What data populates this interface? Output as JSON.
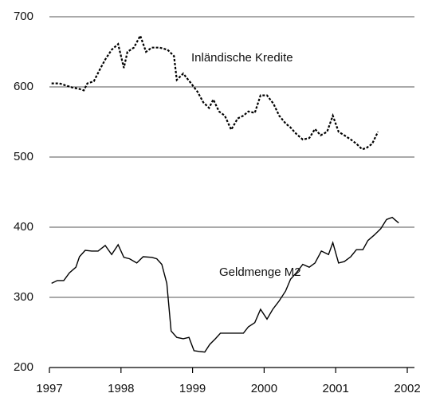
{
  "chart_data": {
    "type": "line",
    "xlim": [
      1997,
      2002
    ],
    "xticks": [
      1997,
      1998,
      1999,
      2000,
      2001,
      2002
    ],
    "ylim": [
      200,
      700
    ],
    "yticks": [
      200,
      300,
      400,
      500,
      600,
      700
    ],
    "grid": true,
    "series": [
      {
        "name": "Inländische Kredite",
        "color": "#000000",
        "dashed": true,
        "x": [
          1997.03,
          1997.14,
          1997.26,
          1997.33,
          1997.42,
          1997.48,
          1997.53,
          1997.62,
          1997.7,
          1997.78,
          1997.87,
          1997.96,
          1998.04,
          1998.09,
          1998.18,
          1998.27,
          1998.35,
          1998.43,
          1998.54,
          1998.65,
          1998.74,
          1998.78,
          1998.87,
          1998.98,
          1999.07,
          1999.15,
          1999.23,
          1999.29,
          1999.37,
          1999.45,
          1999.54,
          1999.63,
          1999.71,
          1999.78,
          1999.87,
          1999.95,
          2000.04,
          2000.13,
          2000.21,
          2000.3,
          2000.37,
          2000.45,
          2000.54,
          2000.63,
          2000.71,
          2000.79,
          2000.88,
          2000.96,
          2001.04,
          2001.12,
          2001.21,
          2001.29,
          2001.37,
          2001.43,
          2001.51,
          2001.59
        ],
        "values": [
          605,
          605,
          601,
          599,
          597,
          595,
          605,
          608,
          624,
          639,
          653,
          661,
          627,
          650,
          656,
          673,
          650,
          656,
          656,
          653,
          644,
          610,
          619,
          605,
          593,
          578,
          570,
          582,
          565,
          559,
          539,
          555,
          559,
          565,
          563,
          588,
          588,
          576,
          559,
          548,
          542,
          533,
          525,
          527,
          540,
          531,
          536,
          559,
          536,
          531,
          525,
          519,
          511,
          513,
          519,
          536
        ]
      },
      {
        "name": "Geldmenge M2",
        "color": "#000000",
        "dashed": false,
        "x": [
          1997.03,
          1997.11,
          1997.2,
          1997.28,
          1997.37,
          1997.42,
          1997.5,
          1997.59,
          1997.68,
          1997.78,
          1997.87,
          1997.96,
          1998.04,
          1998.12,
          1998.22,
          1998.31,
          1998.43,
          1998.5,
          1998.57,
          1998.64,
          1998.7,
          1998.78,
          1998.87,
          1998.95,
          1999.02,
          1999.09,
          1999.17,
          1999.24,
          1999.32,
          1999.39,
          1999.48,
          1999.59,
          1999.71,
          1999.78,
          1999.87,
          1999.95,
          2000.04,
          2000.12,
          2000.21,
          2000.3,
          2000.37,
          2000.45,
          2000.54,
          2000.63,
          2000.71,
          2000.8,
          2000.9,
          2000.96,
          2001.04,
          2001.12,
          2001.21,
          2001.29,
          2001.38,
          2001.45,
          2001.54,
          2001.63,
          2001.71,
          2001.79,
          2001.88
        ],
        "values": [
          320,
          324,
          324,
          335,
          343,
          358,
          367,
          366,
          366,
          374,
          361,
          375,
          357,
          355,
          349,
          358,
          357,
          355,
          347,
          320,
          252,
          243,
          241,
          243,
          224,
          223,
          222,
          233,
          241,
          249,
          249,
          249,
          249,
          258,
          264,
          283,
          269,
          283,
          295,
          309,
          326,
          335,
          347,
          343,
          349,
          366,
          361,
          378,
          349,
          351,
          358,
          368,
          368,
          381,
          389,
          398,
          411,
          414,
          406
        ]
      }
    ]
  }
}
